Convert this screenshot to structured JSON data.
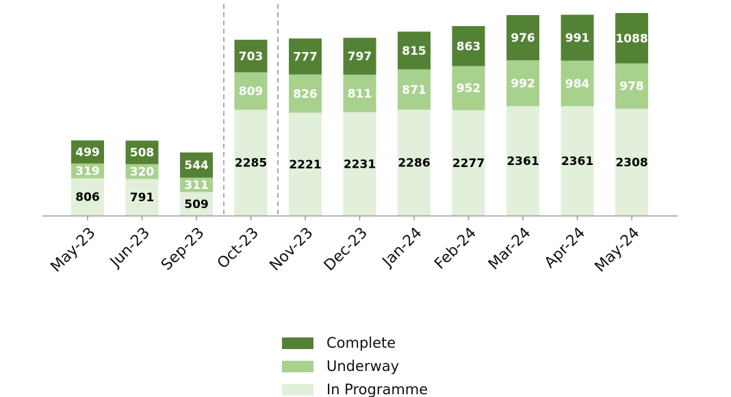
{
  "chart_data": {
    "type": "stacked_bar",
    "categories": [
      "May-23",
      "Jun-23",
      "Sep-23",
      "Oct-23",
      "Nov-23",
      "Dec-23",
      "Jan-24",
      "Feb-24",
      "Mar-24",
      "Apr-24",
      "May-24"
    ],
    "series": [
      {
        "name": "In Programme",
        "color": "#e2efda",
        "label_color": "#000000",
        "values": [
          806,
          791,
          509,
          2285,
          2221,
          2231,
          2286,
          2277,
          2361,
          2361,
          2308
        ]
      },
      {
        "name": "Underway",
        "color": "#a9d18e",
        "label_color": "#ffffff",
        "values": [
          319,
          320,
          311,
          809,
          826,
          811,
          871,
          952,
          992,
          984,
          978
        ]
      },
      {
        "name": "Complete",
        "color": "#548235",
        "label_color": "#ffffff",
        "values": [
          499,
          508,
          544,
          703,
          777,
          797,
          815,
          863,
          976,
          991,
          1088
        ]
      }
    ]
  }
}
